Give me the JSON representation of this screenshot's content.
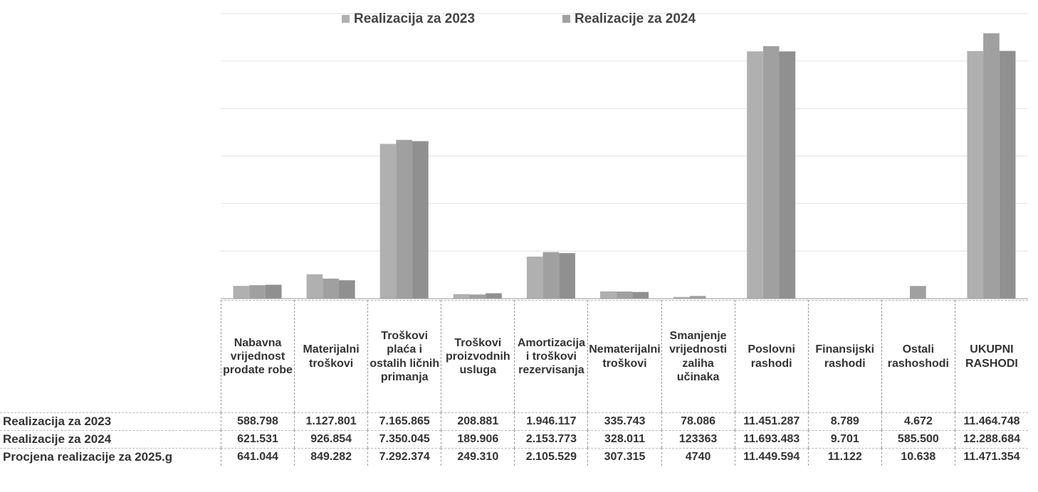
{
  "chart_data": {
    "type": "bar",
    "categories": [
      "Nabavna vrijednost prodate robe",
      "Materijalni troškovi",
      "Troškovi plaća i ostalih ličnih primanja",
      "Troškovi proizvodnih usluga",
      "Amortizacija i troškovi rezervisanja",
      "Nematerijalni troškovi",
      "Smanjenje vrijednosti zaliha učinaka",
      "Poslovni rashodi",
      "Finansijski rashodi",
      "Ostali rashoshodi",
      "UKUPNI RASHODI"
    ],
    "series": [
      {
        "name": "Realizacija za 2023",
        "color": "#b0b0b0",
        "legend": true,
        "values": [
          588798,
          1127801,
          7165865,
          208881,
          1946117,
          335743,
          78086,
          11451287,
          8789,
          4672,
          11464748
        ],
        "value_labels": [
          "588.798",
          "1.127.801",
          "7.165.865",
          "208.881",
          "1.946.117",
          "335.743",
          "78.086",
          "11.451.287",
          "8.789",
          "4.672",
          "11.464.748"
        ]
      },
      {
        "name": "Realizacije za 2024",
        "color": "#a0a0a0",
        "legend": true,
        "values": [
          621531,
          926854,
          7350045,
          189906,
          2153773,
          328011,
          123363,
          11693483,
          9701,
          585500,
          12288684
        ],
        "value_labels": [
          "621.531",
          "926.854",
          "7.350.045",
          "189.906",
          "2.153.773",
          "328.011",
          "123363",
          "11.693.483",
          "9.701",
          "585.500",
          "12.288.684"
        ]
      },
      {
        "name": "Procjena realizacije za 2025.g",
        "color": "#909090",
        "legend": false,
        "values": [
          641044,
          849282,
          7292374,
          249310,
          2105529,
          307315,
          4740,
          11449594,
          11122,
          10638,
          11471354
        ],
        "value_labels": [
          "641.044",
          "849.282",
          "7.292.374",
          "249.310",
          "2.105.529",
          "307.315",
          "4740",
          "11.449.594",
          "11.122",
          "10.638",
          "11.471.354"
        ]
      }
    ],
    "ylim": [
      0,
      13500000
    ],
    "yticks": [
      0,
      2200000,
      4400000,
      6600000,
      8800000,
      11000000,
      13200000
    ],
    "grid": true
  }
}
